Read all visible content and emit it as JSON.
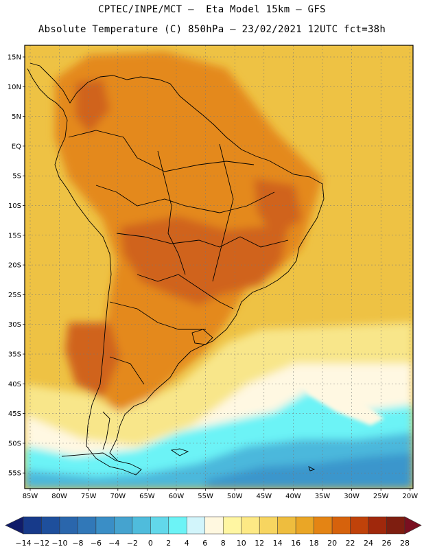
{
  "header": {
    "line1": "CPTEC/INPE/MCT –  Eta Model 15km – GFS",
    "line2": "Absolute Temperature (C) 850hPa – 23/02/2021 12UTC fct=38h"
  },
  "axes": {
    "lat_labels": [
      "15N",
      "10N",
      "5N",
      "EQ",
      "5S",
      "10S",
      "15S",
      "20S",
      "25S",
      "30S",
      "35S",
      "40S",
      "45S",
      "50S",
      "55S"
    ],
    "lon_labels": [
      "85W",
      "80W",
      "75W",
      "70W",
      "65W",
      "60W",
      "55W",
      "50W",
      "45W",
      "40W",
      "35W",
      "30W",
      "25W",
      "20W"
    ]
  },
  "colorbar": {
    "labels": [
      "-14",
      "-12",
      "-10",
      "-8",
      "-6",
      "-4",
      "-2",
      "0",
      "2",
      "4",
      "6",
      "8",
      "10",
      "12",
      "14",
      "16",
      "18",
      "20",
      "22",
      "24",
      "26",
      "28"
    ],
    "colors": [
      "#173a8a",
      "#1e4f9c",
      "#2a66ac",
      "#3178b8",
      "#3a8ec6",
      "#45a3cf",
      "#4fbcdc",
      "#62d8ea",
      "#6cf3f6",
      "#d2f5fb",
      "#fff8e0",
      "#fff6a2",
      "#fde985",
      "#f7d560",
      "#eebd3e",
      "#eaa626",
      "#e48414",
      "#d6620c",
      "#c0420a",
      "#a0280c",
      "#7e1e10"
    ],
    "under_color": "#101c6a",
    "over_color": "#7a0f20"
  },
  "field_colors": {
    "ocean_warm": "#eec244",
    "ocean_mid": "#f1cd5c",
    "land_hot": "#e4891c",
    "land_hotter": "#d0641a",
    "cool_yellow": "#f8e68a",
    "pale": "#fff8e2",
    "cyan": "#6cf3f6",
    "blue": "#4cb8dc",
    "deep_blue": "#3a96cc"
  }
}
